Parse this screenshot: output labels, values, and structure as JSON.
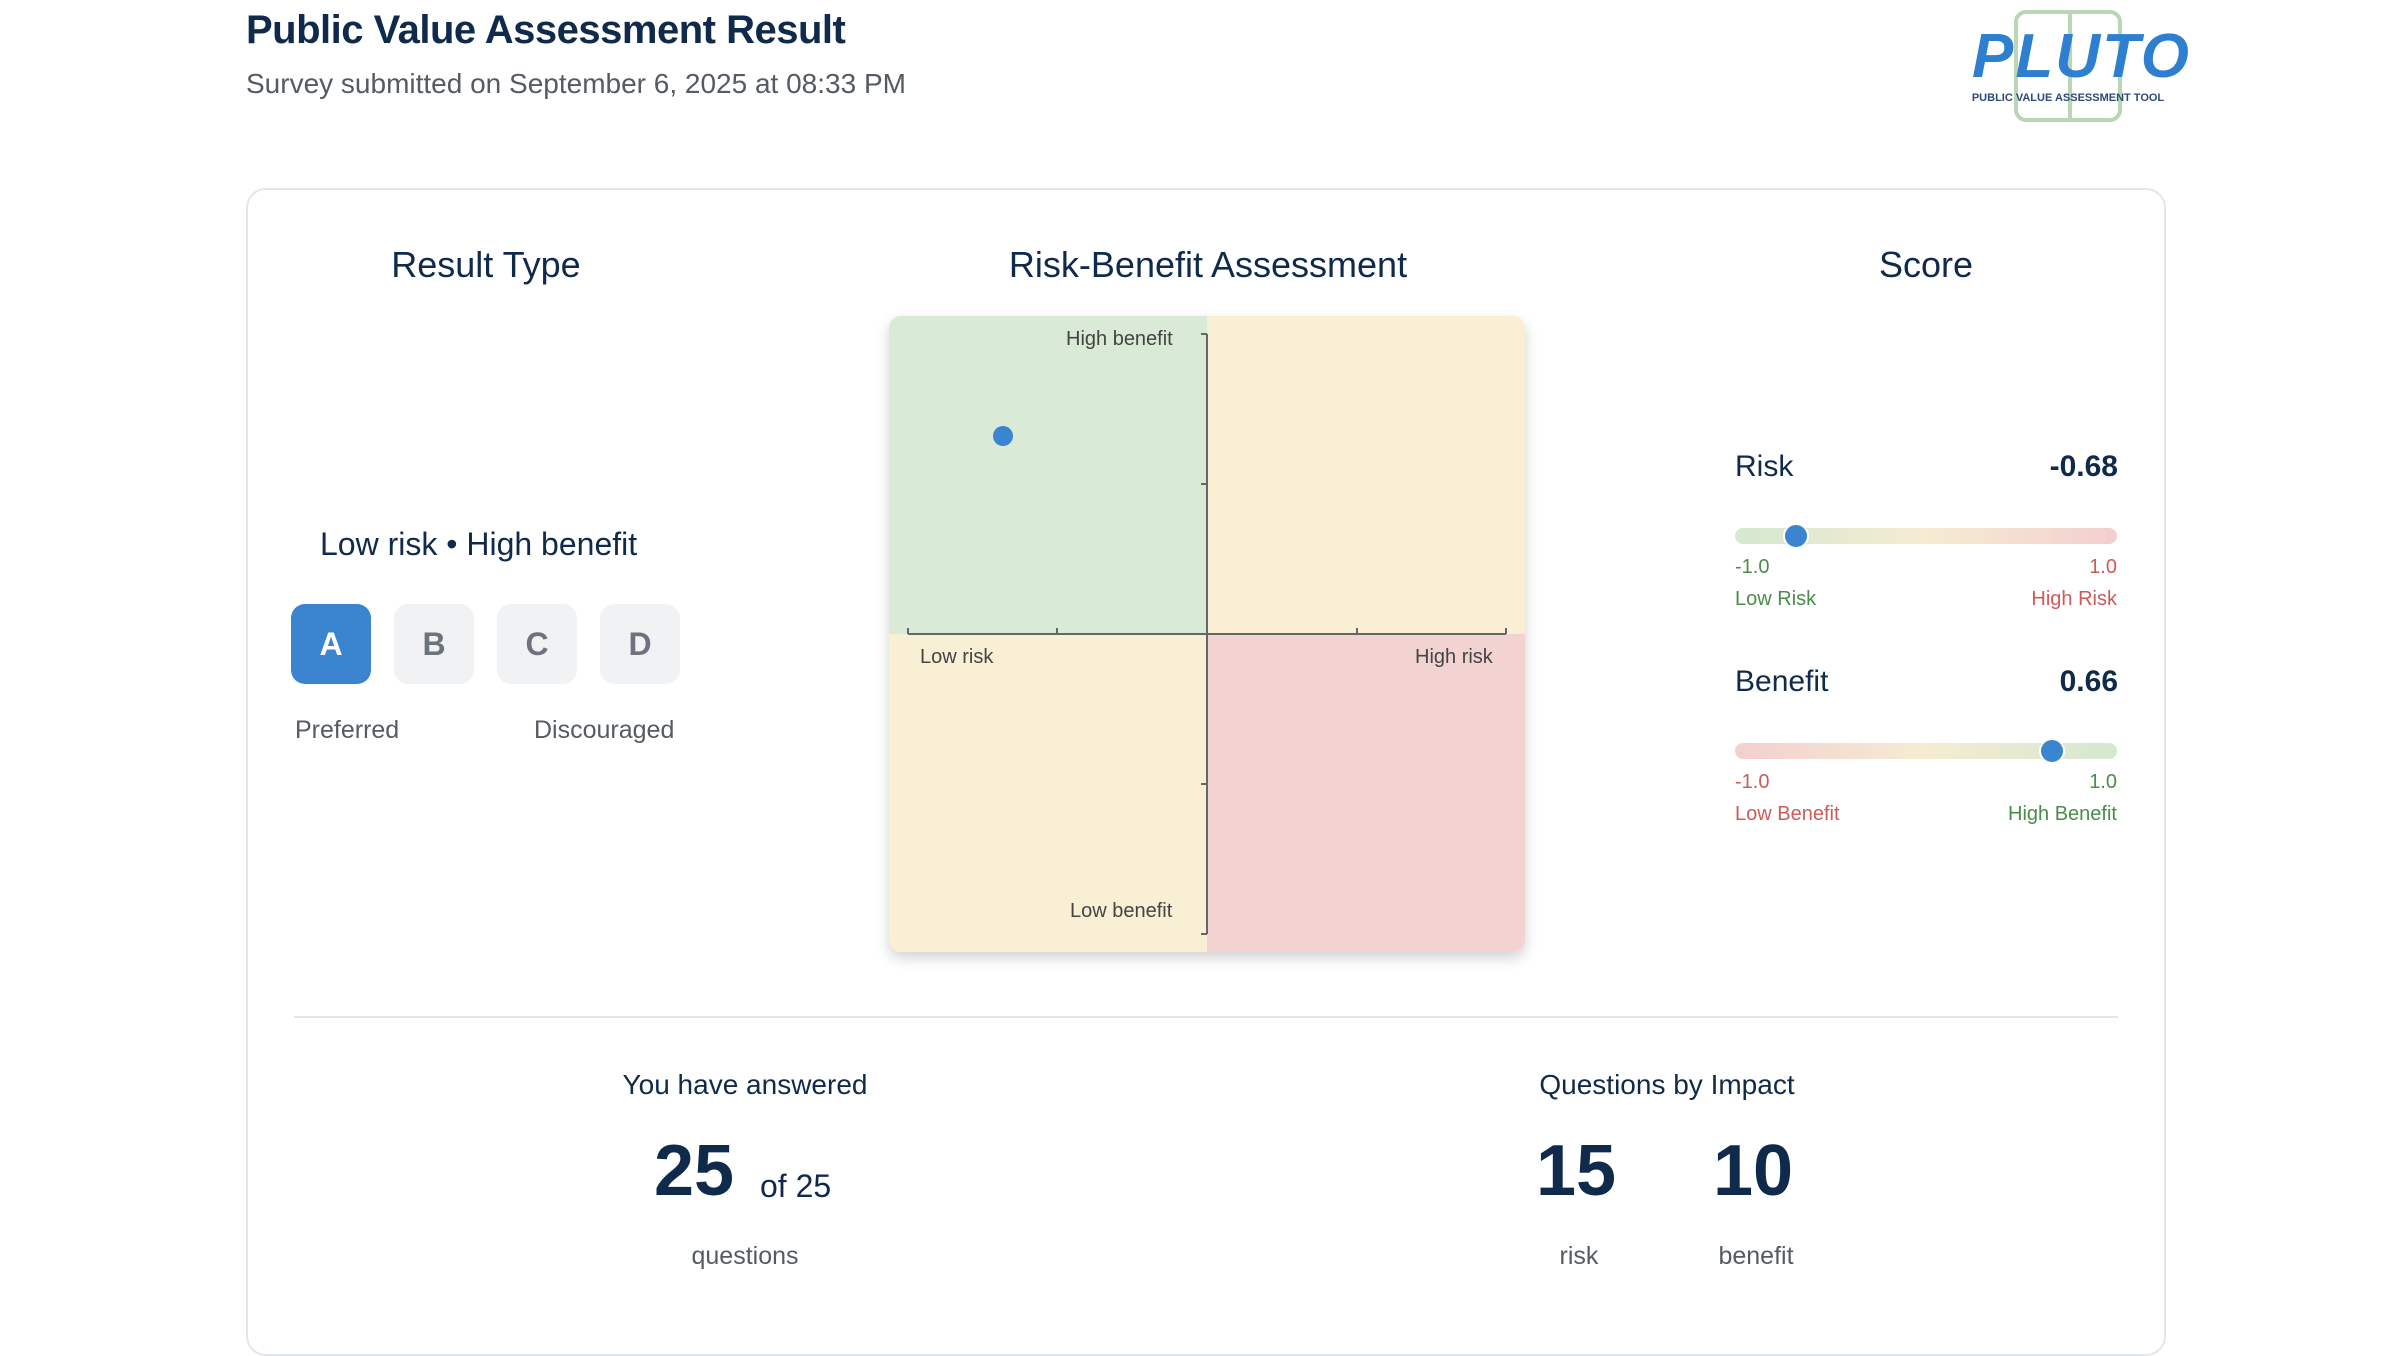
{
  "header": {
    "title": "Public Value Assessment Result",
    "subtitle": "Survey submitted on September 6, 2025 at 08:33 PM"
  },
  "logo": {
    "text": "PLUTO",
    "tagline": "PUBLIC VALUE ASSESSMENT TOOL"
  },
  "result_type": {
    "title": "Result Type",
    "description": "Low risk • High benefit",
    "grades": [
      "A",
      "B",
      "C",
      "D"
    ],
    "active_grade": "A",
    "left_label": "Preferred",
    "right_label": "Discouraged"
  },
  "assessment": {
    "title": "Risk-Benefit Assessment",
    "labels": {
      "high_benefit": "High benefit",
      "low_benefit": "Low benefit",
      "low_risk": "Low risk",
      "high_risk": "High risk"
    },
    "point": {
      "risk": -0.68,
      "benefit": 0.66
    },
    "quadrant_colors": {
      "low_risk_high_benefit": "#d9ead6",
      "high_risk_high_benefit": "#f8efd4",
      "low_risk_low_benefit": "#f8efd4",
      "high_risk_low_benefit": "#f2d3d2"
    },
    "point_color": "#3a84d0"
  },
  "score": {
    "title": "Score",
    "risk": {
      "label": "Risk",
      "value": "-0.68",
      "numeric": -0.68,
      "min": "-1.0",
      "max": "1.0",
      "min_label": "Low Risk",
      "max_label": "High Risk"
    },
    "benefit": {
      "label": "Benefit",
      "value": "0.66",
      "numeric": 0.66,
      "min": "-1.0",
      "max": "1.0",
      "min_label": "Low Benefit",
      "max_label": "High Benefit"
    }
  },
  "answered": {
    "label": "You have answered",
    "count": "25",
    "total": "of 25",
    "unit": "questions"
  },
  "impact": {
    "label": "Questions by Impact",
    "risk_count": "15",
    "risk_label": "risk",
    "benefit_count": "10",
    "benefit_label": "benefit"
  }
}
